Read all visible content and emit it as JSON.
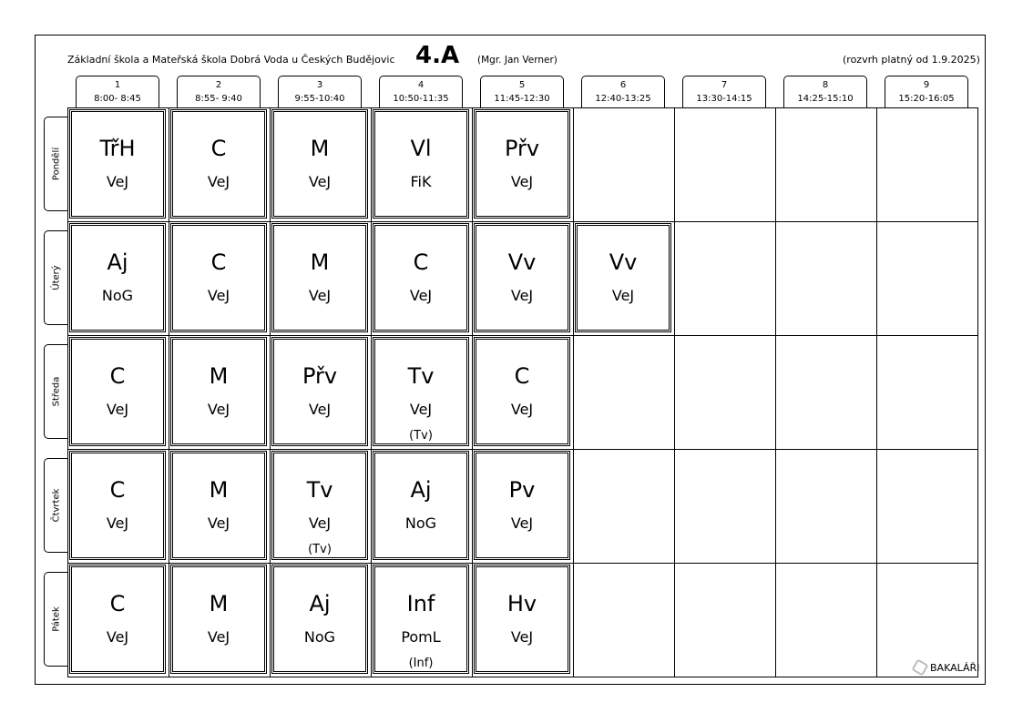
{
  "header": {
    "school": "Základní škola a Mateřská škola Dobrá Voda u Českých Budějovic",
    "class": "4.A",
    "teacher": "(Mgr. Jan Verner)",
    "valid": "(rozvrh platný od 1.9.2025)"
  },
  "periods": [
    {
      "n": "1",
      "t": "8:00- 8:45"
    },
    {
      "n": "2",
      "t": "8:55- 9:40"
    },
    {
      "n": "3",
      "t": "9:55-10:40"
    },
    {
      "n": "4",
      "t": "10:50-11:35"
    },
    {
      "n": "5",
      "t": "11:45-12:30"
    },
    {
      "n": "6",
      "t": "12:40-13:25"
    },
    {
      "n": "7",
      "t": "13:30-14:15"
    },
    {
      "n": "8",
      "t": "14:25-15:10"
    },
    {
      "n": "9",
      "t": "15:20-16:05"
    }
  ],
  "days": [
    {
      "name": "Pondělí",
      "lessons": [
        {
          "s": "TřH",
          "t": "VeJ"
        },
        {
          "s": "C",
          "t": "VeJ"
        },
        {
          "s": "M",
          "t": "VeJ"
        },
        {
          "s": "Vl",
          "t": "FiK"
        },
        {
          "s": "Přv",
          "t": "VeJ"
        }
      ]
    },
    {
      "name": "Úterý",
      "lessons": [
        {
          "s": "Aj",
          "t": "NoG"
        },
        {
          "s": "C",
          "t": "VeJ"
        },
        {
          "s": "M",
          "t": "VeJ"
        },
        {
          "s": "C",
          "t": "VeJ"
        },
        {
          "s": "Vv",
          "t": "VeJ"
        },
        {
          "s": "Vv",
          "t": "VeJ"
        }
      ]
    },
    {
      "name": "Středa",
      "lessons": [
        {
          "s": "C",
          "t": "VeJ"
        },
        {
          "s": "M",
          "t": "VeJ"
        },
        {
          "s": "Přv",
          "t": "VeJ"
        },
        {
          "s": "Tv",
          "t": "VeJ",
          "g": "(Tv)"
        },
        {
          "s": "C",
          "t": "VeJ"
        }
      ]
    },
    {
      "name": "Čtvrtek",
      "lessons": [
        {
          "s": "C",
          "t": "VeJ"
        },
        {
          "s": "M",
          "t": "VeJ"
        },
        {
          "s": "Tv",
          "t": "VeJ",
          "g": "(Tv)"
        },
        {
          "s": "Aj",
          "t": "NoG"
        },
        {
          "s": "Pv",
          "t": "VeJ"
        }
      ]
    },
    {
      "name": "Pátek",
      "lessons": [
        {
          "s": "C",
          "t": "VeJ"
        },
        {
          "s": "M",
          "t": "VeJ"
        },
        {
          "s": "Aj",
          "t": "NoG"
        },
        {
          "s": "Inf",
          "t": "PomL",
          "g": "(Inf)"
        },
        {
          "s": "Hv",
          "t": "VeJ"
        }
      ]
    }
  ],
  "footer": {
    "logo": "BAKALÁŘI"
  }
}
